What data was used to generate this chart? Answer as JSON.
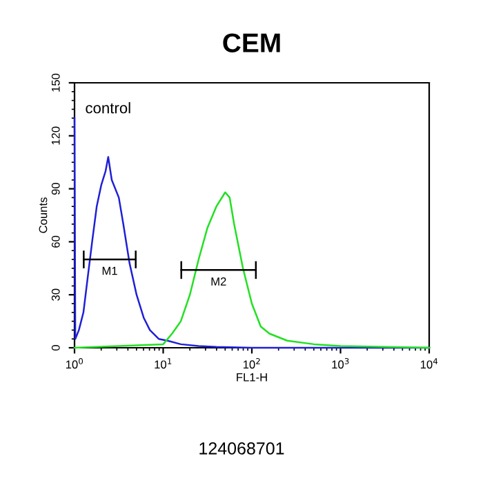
{
  "chart_data": {
    "type": "line",
    "title": "CEM",
    "xlabel": "FL1-H",
    "ylabel": "Counts",
    "log": "x",
    "xlim": [
      1,
      10000
    ],
    "xticks": [
      {
        "value": 1,
        "label": "10$^{0}$"
      },
      {
        "value": 10,
        "label": "10$^{1}$"
      },
      {
        "value": 100,
        "label": "10$^{2}$"
      },
      {
        "value": 1000,
        "label": "10$^{3}$"
      },
      {
        "value": 10000,
        "label": "10$^{4}$"
      }
    ],
    "ylim": [
      0,
      150
    ],
    "yticks": [
      0,
      30,
      60,
      90,
      120,
      150
    ],
    "grid": false,
    "legend": false,
    "series": [
      {
        "color": "#1f1fd8",
        "x": [
          1.0,
          1.02,
          1.12,
          1.26,
          1.41,
          1.58,
          1.78,
          2.0,
          2.24,
          2.4,
          2.63,
          3.16,
          3.55,
          4.17,
          5.01,
          6.03,
          7.08,
          8.91,
          11.2,
          15.8,
          25.1,
          39.8,
          100,
          1000,
          10000
        ],
        "values": [
          130,
          5,
          10,
          20,
          40,
          60,
          80,
          92,
          100,
          108,
          95,
          85,
          70,
          48,
          30,
          17,
          10,
          5,
          4,
          2,
          1,
          0.5,
          0,
          0,
          0
        ]
      },
      {
        "color": "#22e022",
        "x": [
          1.0,
          3.16,
          10.0,
          12.6,
          15.8,
          20.0,
          25.1,
          31.6,
          39.8,
          50.1,
          56.2,
          63.1,
          79.4,
          100,
          126,
          158,
          251,
          501,
          1000,
          10000
        ],
        "values": [
          0,
          1,
          2,
          8,
          15,
          30,
          50,
          68,
          80,
          88,
          85,
          70,
          45,
          25,
          12,
          8,
          4,
          2,
          1,
          0
        ]
      },
      {
        "name": "M1",
        "color": "#000000",
        "x": [
          1.27,
          4.9
        ],
        "values": [
          50,
          50
        ],
        "errors": [
          5,
          5
        ]
      },
      {
        "name": "M2",
        "color": "#000000",
        "x": [
          16,
          111
        ],
        "values": [
          44,
          44
        ],
        "errors": [
          5,
          5
        ]
      }
    ],
    "annotations": [
      "control",
      "124068701"
    ]
  }
}
